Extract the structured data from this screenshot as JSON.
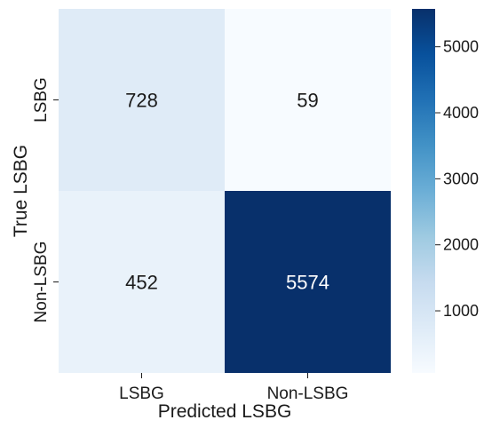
{
  "chart_data": {
    "type": "heatmap",
    "title": "",
    "xlabel": "Predicted LSBG",
    "ylabel": "True LSBG",
    "x_categories": [
      "LSBG",
      "Non-LSBG"
    ],
    "y_categories": [
      "LSBG",
      "Non-LSBG"
    ],
    "values": [
      [
        728,
        59
      ],
      [
        452,
        5574
      ]
    ],
    "colormap": "Blues",
    "colorbar": {
      "vmin": 59,
      "vmax": 5574,
      "ticks": [
        1000,
        2000,
        3000,
        4000,
        5000
      ],
      "tick_labels": [
        "1000",
        "2000",
        "3000",
        "4000",
        "5000"
      ]
    },
    "grid": false,
    "legend": "colorbar-right"
  }
}
